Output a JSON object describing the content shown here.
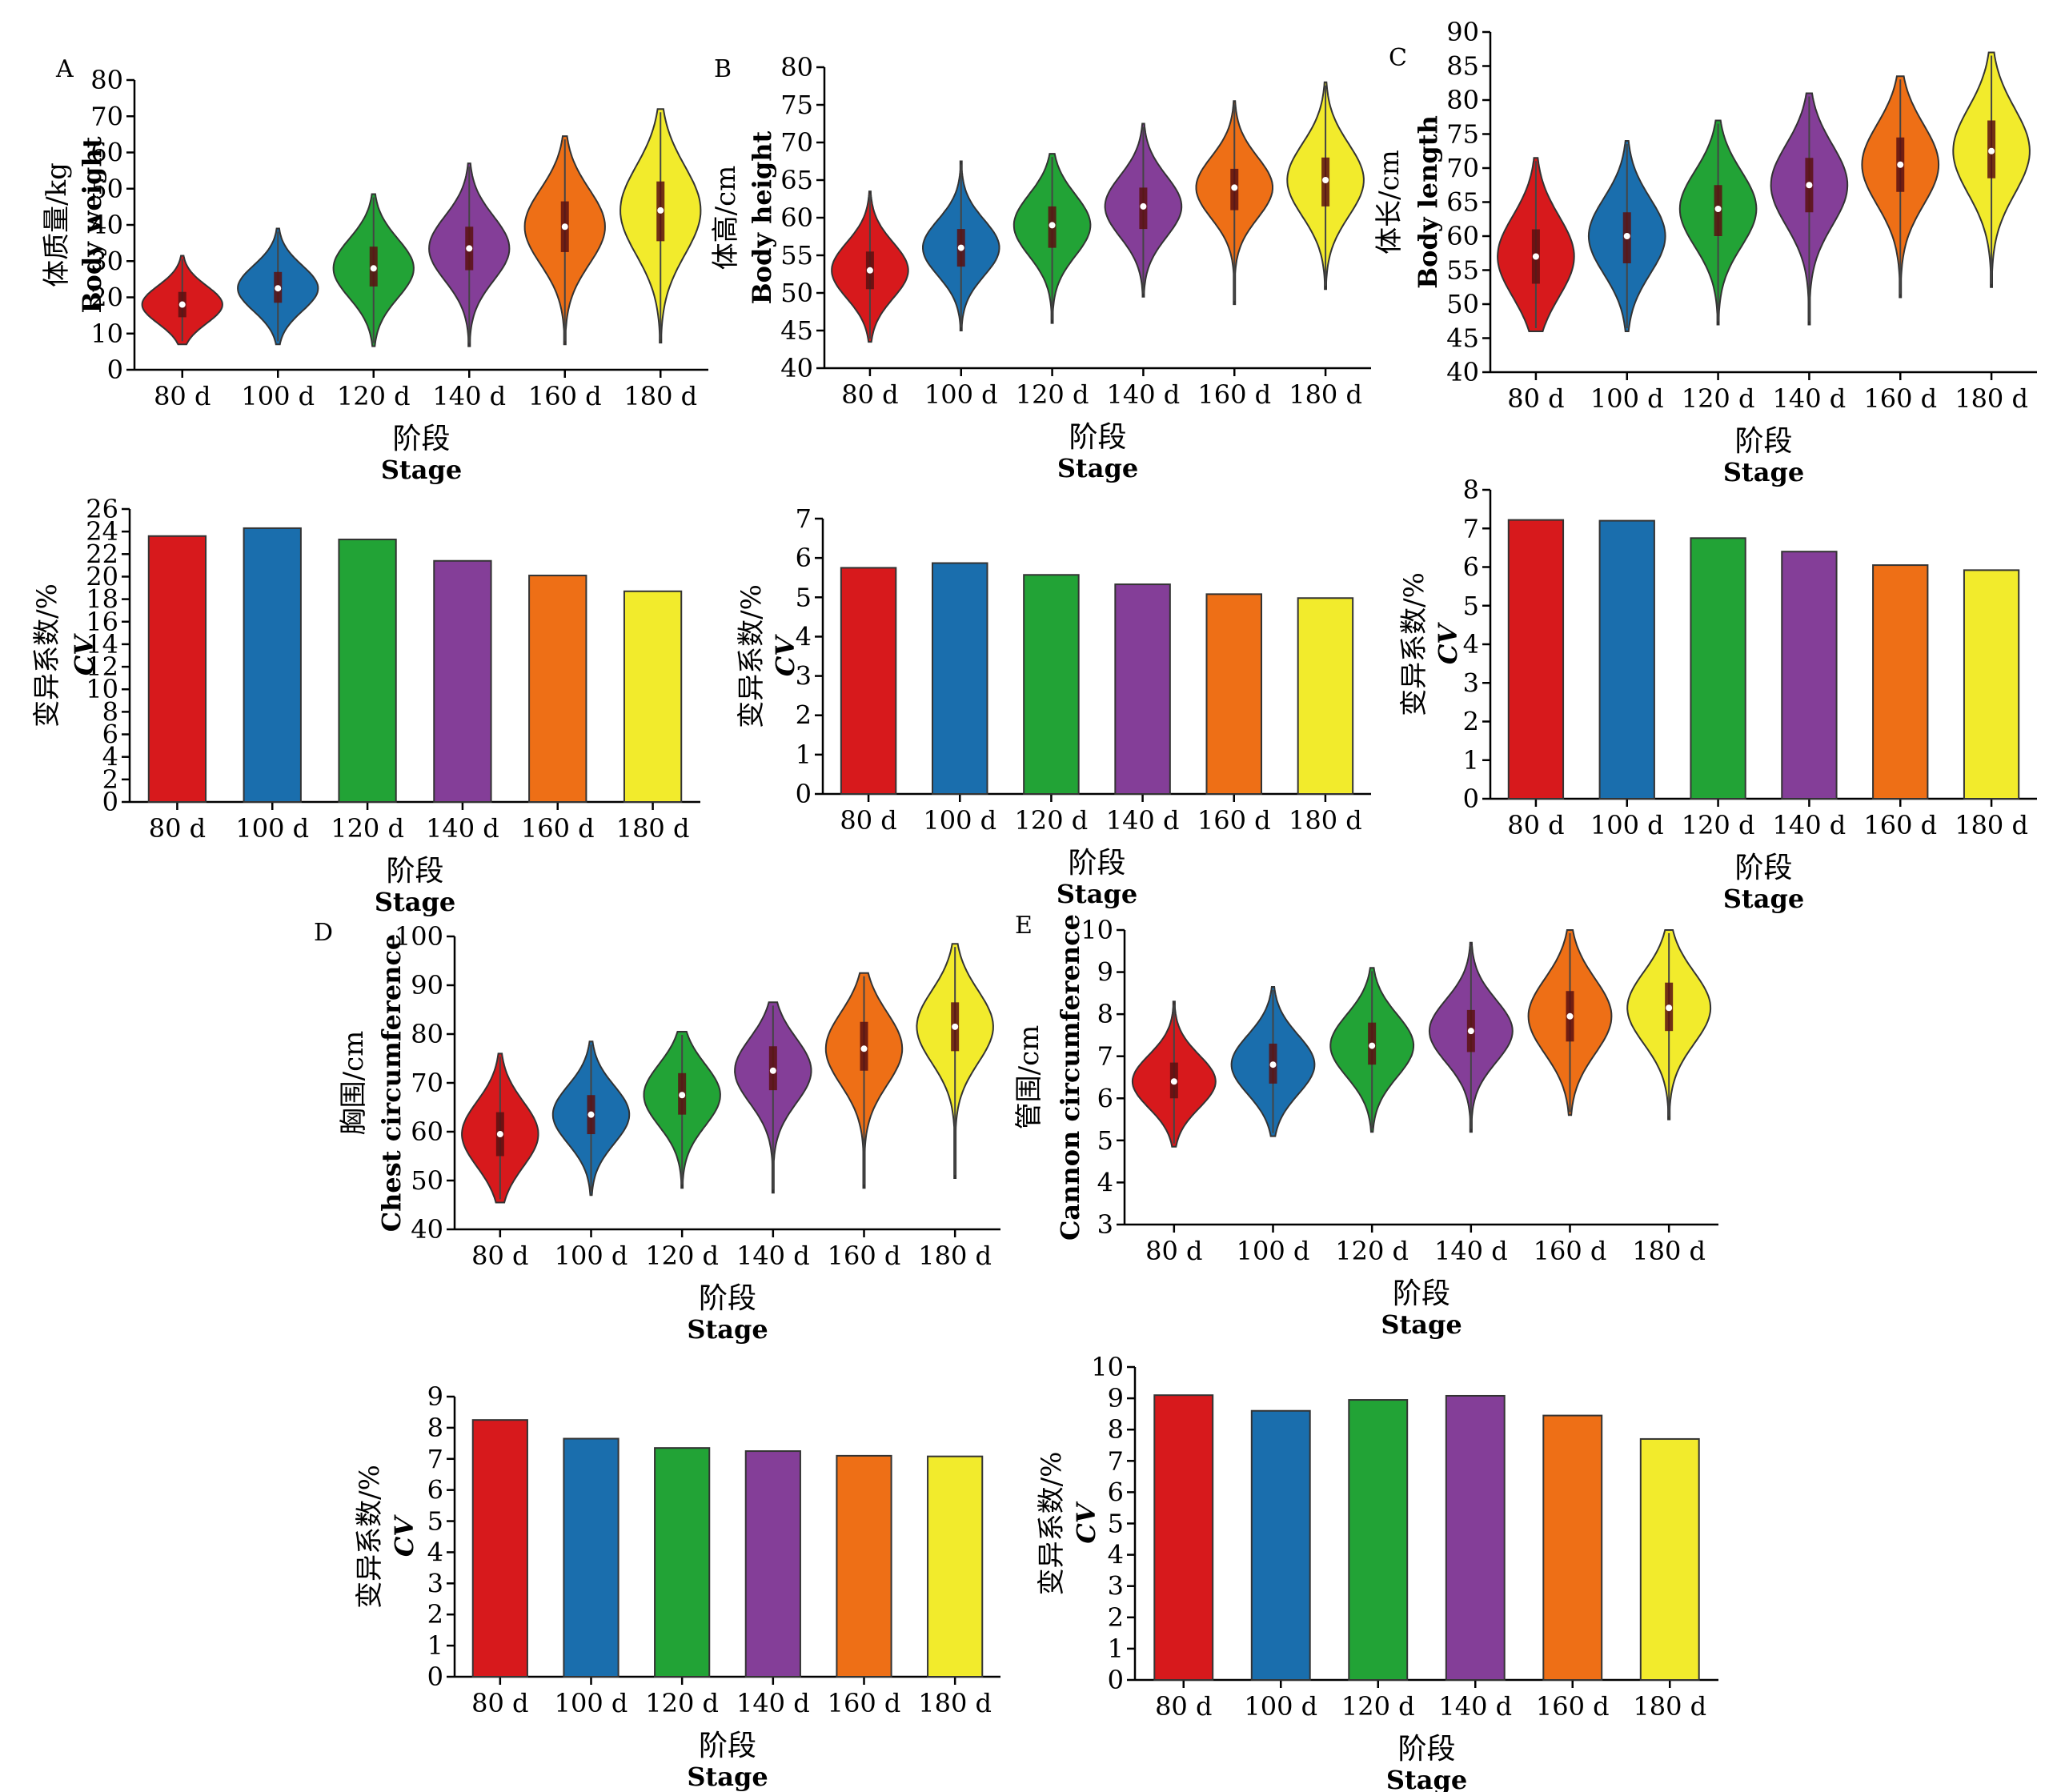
{
  "colors": [
    "#D7191C",
    "#1A6EAD",
    "#22A336",
    "#843E98",
    "#EE6F16",
    "#F2EB2C"
  ],
  "stage_categories": [
    "80 d",
    "100 d",
    "120 d",
    "140 d",
    "160 d",
    "180 d"
  ],
  "x_label_cn": "阶段",
  "x_label_en": "Stage",
  "cv_label_cn": "变异系数/%",
  "cv_label_en": "CV",
  "chart_data": [
    {
      "id": "A-violin",
      "type": "violin",
      "panel_letter": "A",
      "ylabel_cn": "体质量/kg",
      "ylabel_en": "Body weight",
      "ylim": [
        0,
        80
      ],
      "yticks": [
        0,
        10,
        20,
        30,
        40,
        50,
        60,
        70,
        80
      ],
      "categories": [
        "80 d",
        "100 d",
        "120 d",
        "140 d",
        "160 d",
        "180 d"
      ],
      "median": [
        18,
        22.5,
        28,
        33.5,
        39.5,
        44
      ],
      "q1": [
        14.5,
        18.5,
        23,
        27.5,
        32.5,
        35.5
      ],
      "q3": [
        21.5,
        27,
        34,
        39.5,
        46.5,
        52
      ],
      "min": [
        7,
        7,
        6.5,
        6.5,
        7,
        7.5
      ],
      "max": [
        31.5,
        39,
        48.5,
        57,
        64.5,
        72
      ]
    },
    {
      "id": "B-violin",
      "type": "violin",
      "panel_letter": "B",
      "ylabel_cn": "体高/cm",
      "ylabel_en": "Body height",
      "ylim": [
        40,
        80
      ],
      "yticks": [
        40,
        45,
        50,
        55,
        60,
        65,
        70,
        75,
        80
      ],
      "categories": [
        "80 d",
        "100 d",
        "120 d",
        "140 d",
        "160 d",
        "180 d"
      ],
      "median": [
        53,
        56,
        59,
        61.5,
        64,
        65
      ],
      "q1": [
        50.5,
        53.5,
        56,
        58.5,
        61,
        61.5
      ],
      "q3": [
        55.5,
        58.5,
        61.5,
        64,
        66.5,
        68
      ],
      "min": [
        43.5,
        45,
        46,
        49.5,
        48.5,
        50.5
      ],
      "max": [
        63.5,
        67.5,
        68.5,
        72.5,
        75.5,
        78
      ]
    },
    {
      "id": "C-violin",
      "type": "violin",
      "panel_letter": "C",
      "ylabel_cn": "体长/cm",
      "ylabel_en": "Body length",
      "ylim": [
        40,
        90
      ],
      "yticks": [
        40,
        45,
        50,
        55,
        60,
        65,
        70,
        75,
        80,
        85,
        90
      ],
      "categories": [
        "80 d",
        "100 d",
        "120 d",
        "140 d",
        "160 d",
        "180 d"
      ],
      "median": [
        57,
        60,
        64,
        67.5,
        70.5,
        72.5
      ],
      "q1": [
        53,
        56,
        60,
        63.5,
        66.5,
        68.5
      ],
      "q3": [
        61,
        63.5,
        67.5,
        71.5,
        74.5,
        77
      ],
      "min": [
        46,
        46,
        47,
        47,
        51,
        52.5
      ],
      "max": [
        71.5,
        74,
        77,
        81,
        83.5,
        87
      ]
    },
    {
      "id": "A-cv",
      "type": "bar",
      "ylabel_cn": "变异系数/%",
      "ylabel_en": "CV",
      "ylim": [
        0,
        26
      ],
      "yticks": [
        0,
        2,
        4,
        6,
        8,
        10,
        12,
        14,
        16,
        18,
        20,
        22,
        24,
        26
      ],
      "categories": [
        "80 d",
        "100 d",
        "120 d",
        "140 d",
        "160 d",
        "180 d"
      ],
      "values": [
        23.6,
        24.3,
        23.3,
        21.4,
        20.1,
        18.7
      ]
    },
    {
      "id": "B-cv",
      "type": "bar",
      "ylabel_cn": "变异系数/%",
      "ylabel_en": "CV",
      "ylim": [
        0,
        7
      ],
      "yticks": [
        0,
        1,
        2,
        3,
        4,
        5,
        6,
        7
      ],
      "categories": [
        "80 d",
        "100 d",
        "120 d",
        "140 d",
        "160 d",
        "180 d"
      ],
      "values": [
        5.75,
        5.87,
        5.57,
        5.33,
        5.08,
        4.98
      ]
    },
    {
      "id": "C-cv",
      "type": "bar",
      "ylabel_cn": "变异系数/%",
      "ylabel_en": "CV",
      "ylim": [
        0,
        8
      ],
      "yticks": [
        0,
        1,
        2,
        3,
        4,
        5,
        6,
        7,
        8
      ],
      "categories": [
        "80 d",
        "100 d",
        "120 d",
        "140 d",
        "160 d",
        "180 d"
      ],
      "values": [
        7.22,
        7.2,
        6.75,
        6.4,
        6.05,
        5.92
      ]
    },
    {
      "id": "D-violin",
      "type": "violin",
      "panel_letter": "D",
      "ylabel_cn": "胸围/cm",
      "ylabel_en": "Chest circumference",
      "ylim": [
        40,
        100
      ],
      "yticks": [
        40,
        50,
        60,
        70,
        80,
        90,
        100
      ],
      "categories": [
        "80 d",
        "100 d",
        "120 d",
        "140 d",
        "160 d",
        "180 d"
      ],
      "median": [
        59.5,
        63.5,
        67.5,
        72.5,
        77,
        81.5
      ],
      "q1": [
        55,
        59.5,
        63.5,
        68.5,
        72.5,
        76.5
      ],
      "q3": [
        64,
        67.5,
        72,
        77.5,
        82.5,
        86.5
      ],
      "min": [
        45.5,
        47,
        48.5,
        47.5,
        48.5,
        50.5
      ],
      "max": [
        76,
        78.5,
        80.5,
        86.5,
        92.5,
        98.5
      ]
    },
    {
      "id": "E-violin",
      "type": "violin",
      "panel_letter": "E",
      "ylabel_cn": "管围/cm",
      "ylabel_en": "Cannon circumference",
      "ylim": [
        3,
        10
      ],
      "yticks": [
        3,
        4,
        5,
        6,
        7,
        8,
        9,
        10
      ],
      "categories": [
        "80 d",
        "100 d",
        "120 d",
        "140 d",
        "160 d",
        "180 d"
      ],
      "median": [
        6.4,
        6.8,
        7.25,
        7.6,
        7.95,
        8.15
      ],
      "q1": [
        6,
        6.35,
        6.8,
        7.1,
        7.35,
        7.6
      ],
      "q3": [
        6.85,
        7.3,
        7.8,
        8.1,
        8.55,
        8.75
      ],
      "min": [
        4.85,
        5.1,
        5.2,
        5.2,
        5.6,
        5.5
      ],
      "max": [
        8.3,
        8.65,
        9.1,
        9.7,
        10,
        10
      ]
    },
    {
      "id": "D-cv",
      "type": "bar",
      "ylabel_cn": "变异系数/%",
      "ylabel_en": "CV",
      "ylim": [
        0,
        9
      ],
      "yticks": [
        0,
        1,
        2,
        3,
        4,
        5,
        6,
        7,
        8,
        9
      ],
      "categories": [
        "80 d",
        "100 d",
        "120 d",
        "140 d",
        "160 d",
        "180 d"
      ],
      "values": [
        8.25,
        7.65,
        7.35,
        7.25,
        7.1,
        7.08
      ]
    },
    {
      "id": "E-cv",
      "type": "bar",
      "ylabel_cn": "变异系数/%",
      "ylabel_en": "CV",
      "ylim": [
        0,
        10
      ],
      "yticks": [
        0,
        1,
        2,
        3,
        4,
        5,
        6,
        7,
        8,
        9,
        10
      ],
      "categories": [
        "80 d",
        "100 d",
        "120 d",
        "140 d",
        "160 d",
        "180 d"
      ],
      "values": [
        9.1,
        8.6,
        8.95,
        9.08,
        8.45,
        7.7
      ]
    }
  ]
}
